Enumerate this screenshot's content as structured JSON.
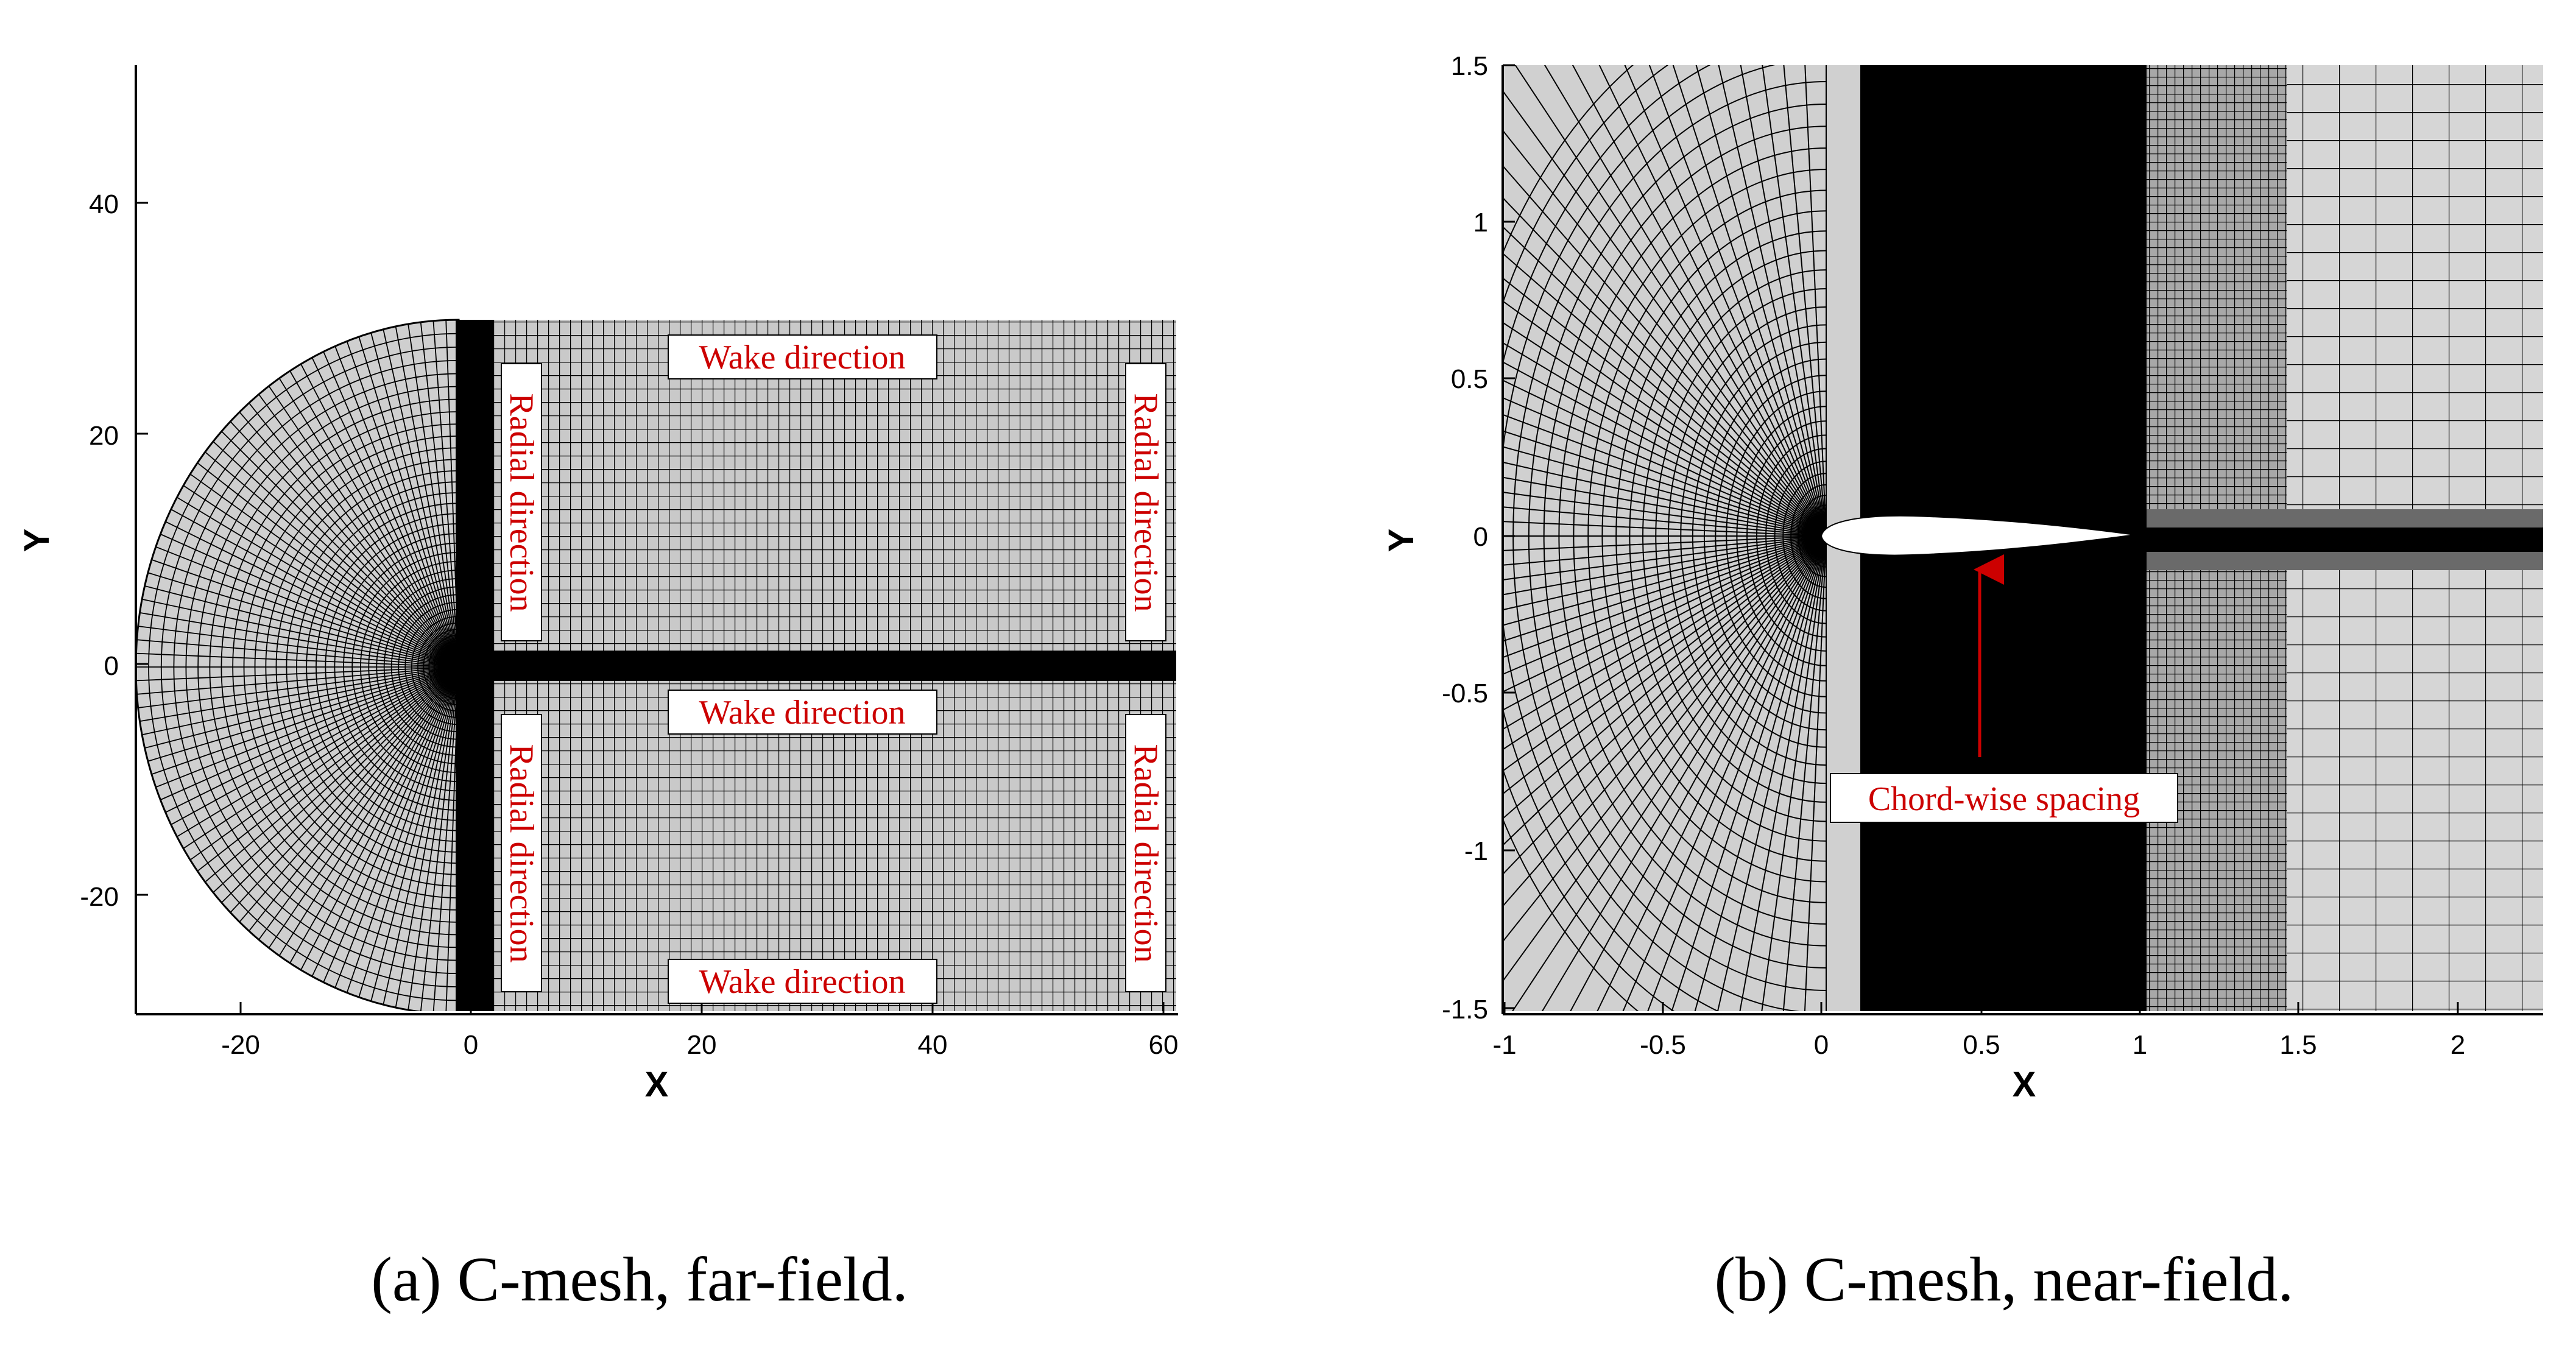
{
  "panels": [
    {
      "caption": "(a) C-mesh, far-field.",
      "xlabel": "X",
      "ylabel": "Y",
      "xticks": [
        "-20",
        "0",
        "20",
        "40",
        "60"
      ],
      "yticks": [
        "40",
        "20",
        "0",
        "-20"
      ],
      "annotations": {
        "wake_top": "Wake direction",
        "wake_mid": "Wake direction",
        "wake_bottom": "Wake direction",
        "radial_ul": "Radial direction",
        "radial_ur": "Radial direction",
        "radial_ll": "Radial direction",
        "radial_lr": "Radial direction"
      }
    },
    {
      "caption": "(b) C-mesh, near-field.",
      "xlabel": "X",
      "ylabel": "Y",
      "xticks": [
        "-1",
        "-0.5",
        "0",
        "0.5",
        "1",
        "1.5",
        "2"
      ],
      "yticks": [
        "1.5",
        "1",
        "0.5",
        "0",
        "-0.5",
        "-1",
        "-1.5"
      ],
      "annotations": {
        "chord": "Chord-wise spacing"
      }
    }
  ],
  "colors": {
    "mesh_fill": "#d4d4d4",
    "mesh_line": "#000000",
    "annotation": "#cc0000"
  }
}
